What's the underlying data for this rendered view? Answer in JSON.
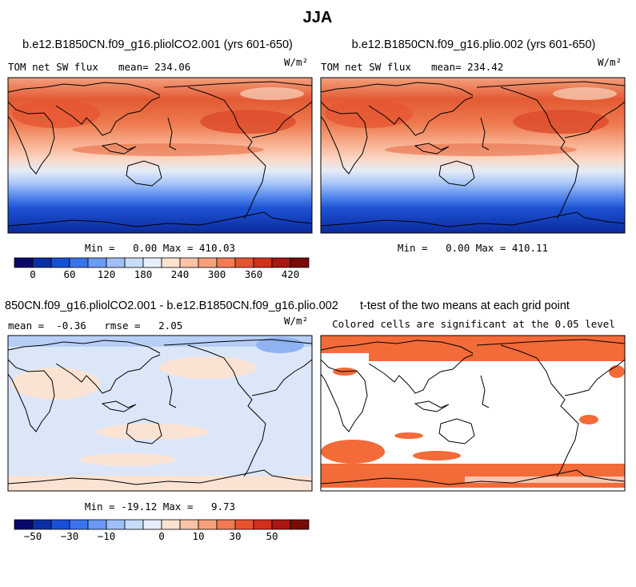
{
  "header": {
    "title": "JJA"
  },
  "panels": [
    {
      "title": "b.e12.B1850CN.f09_g16.pliolCO2.001 (yrs 601-650)",
      "left_label": "TOM net SW flux",
      "center_label": "mean= 234.06",
      "units": "W/m²",
      "minmax": "Min =   0.00 Max = 410.03"
    },
    {
      "title": "b.e12.B1850CN.f09_g16.plio.002 (yrs 601-650)",
      "left_label": "TOM net SW flux",
      "center_label": "mean= 234.42",
      "units": "W/m²",
      "minmax": "Min =   0.00 Max = 410.11"
    },
    {
      "title": "850CN.f09_g16.pliolCO2.001 - b.e12.B1850CN.f09_g16.plio.002",
      "left_label": "mean =  -0.36   rmse =   2.05",
      "units": "W/m²",
      "minmax": "Min = -19.12 Max =   9.73"
    },
    {
      "title": "t-test of the two means at each grid point",
      "center_label": "Colored cells are significant at the 0.05 level"
    }
  ],
  "colorbars": [
    {
      "labels": [
        0,
        60,
        120,
        180,
        240,
        300,
        360,
        420
      ]
    },
    {
      "labels": [
        -50,
        -30,
        -10,
        0,
        10,
        30,
        50
      ]
    }
  ]
}
